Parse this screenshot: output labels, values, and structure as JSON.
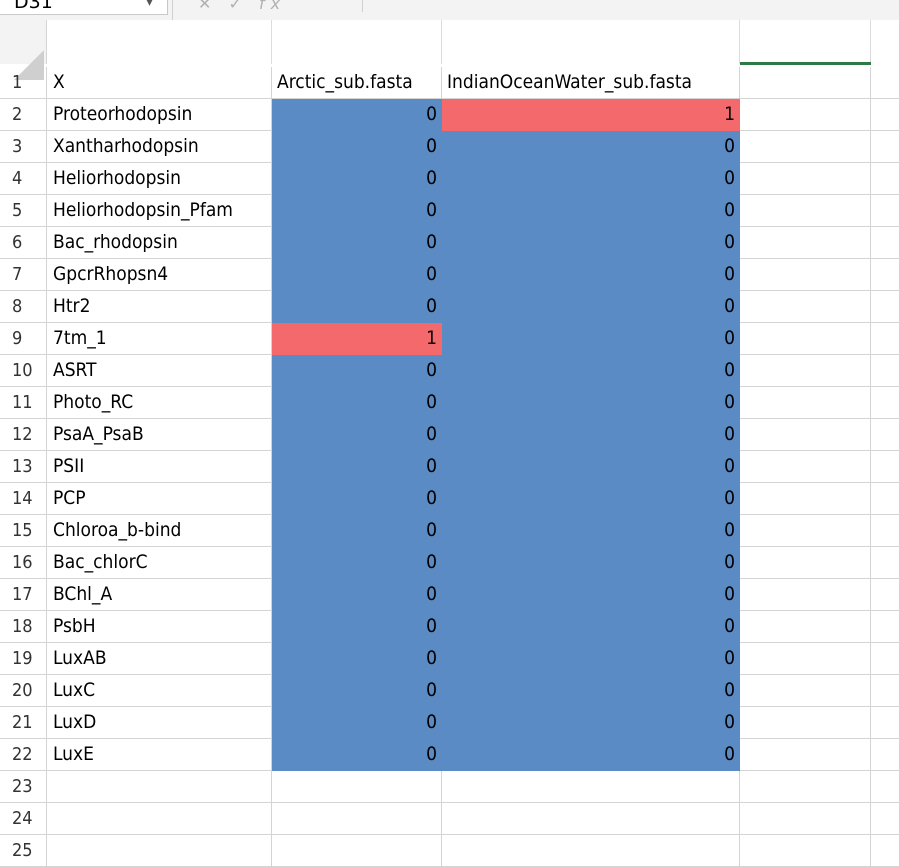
{
  "name_box": {
    "value": "D31",
    "caret": "▾"
  },
  "formula_bar": {
    "icons": [
      "cancel-icon",
      "enter-icon",
      "function-icon"
    ],
    "function_label": "fx"
  },
  "columns": {
    "header_a": "X",
    "header_b": "Arctic_sub.fasta",
    "header_c": "IndianOceanWater_sub.fasta"
  },
  "colors": {
    "low": "#5b8bc5",
    "high": "#f4696c",
    "selection": "#2d7a46"
  },
  "rows": [
    {
      "num": "1",
      "name": "X",
      "arctic": "Arctic_sub.fasta",
      "indian": "IndianOceanWater_sub.fasta",
      "header": true
    },
    {
      "num": "2",
      "name": "Proteorhodopsin",
      "arctic": "0",
      "indian": "1"
    },
    {
      "num": "3",
      "name": "Xantharhodopsin",
      "arctic": "0",
      "indian": "0"
    },
    {
      "num": "4",
      "name": "Heliorhodopsin",
      "arctic": "0",
      "indian": "0"
    },
    {
      "num": "5",
      "name": "Heliorhodopsin_Pfam",
      "arctic": "0",
      "indian": "0"
    },
    {
      "num": "6",
      "name": "Bac_rhodopsin",
      "arctic": "0",
      "indian": "0"
    },
    {
      "num": "7",
      "name": "GpcrRhopsn4",
      "arctic": "0",
      "indian": "0"
    },
    {
      "num": "8",
      "name": "Htr2",
      "arctic": "0",
      "indian": "0"
    },
    {
      "num": "9",
      "name": "7tm_1",
      "arctic": "1",
      "indian": "0"
    },
    {
      "num": "10",
      "name": "ASRT",
      "arctic": "0",
      "indian": "0"
    },
    {
      "num": "11",
      "name": "Photo_RC",
      "arctic": "0",
      "indian": "0"
    },
    {
      "num": "12",
      "name": "PsaA_PsaB",
      "arctic": "0",
      "indian": "0"
    },
    {
      "num": "13",
      "name": "PSII",
      "arctic": "0",
      "indian": "0"
    },
    {
      "num": "14",
      "name": "PCP",
      "arctic": "0",
      "indian": "0"
    },
    {
      "num": "15",
      "name": "Chloroa_b-bind",
      "arctic": "0",
      "indian": "0"
    },
    {
      "num": "16",
      "name": "Bac_chlorC",
      "arctic": "0",
      "indian": "0"
    },
    {
      "num": "17",
      "name": "BChl_A",
      "arctic": "0",
      "indian": "0"
    },
    {
      "num": "18",
      "name": "PsbH",
      "arctic": "0",
      "indian": "0"
    },
    {
      "num": "19",
      "name": "LuxAB",
      "arctic": "0",
      "indian": "0"
    },
    {
      "num": "20",
      "name": "LuxC",
      "arctic": "0",
      "indian": "0"
    },
    {
      "num": "21",
      "name": "LuxD",
      "arctic": "0",
      "indian": "0"
    },
    {
      "num": "22",
      "name": "LuxE",
      "arctic": "0",
      "indian": "0"
    },
    {
      "num": "23",
      "name": "",
      "arctic": "",
      "indian": ""
    },
    {
      "num": "24",
      "name": "",
      "arctic": "",
      "indian": ""
    },
    {
      "num": "25",
      "name": "",
      "arctic": "",
      "indian": ""
    }
  ]
}
